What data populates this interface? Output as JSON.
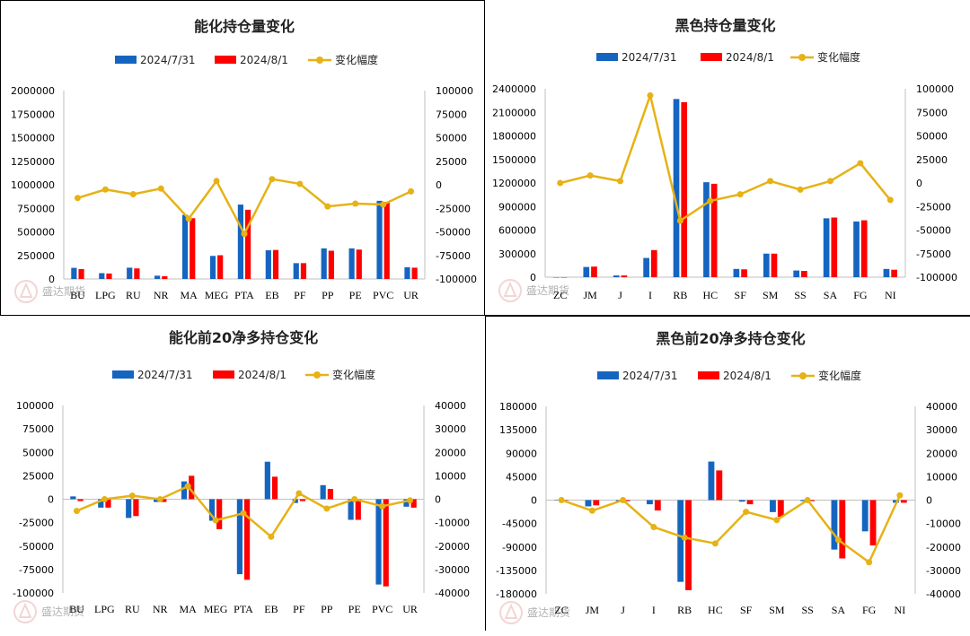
{
  "colors": {
    "blue": "#1565C0",
    "red": "#FF0000",
    "gold": "#E6B215"
  },
  "watermark": {
    "name": "盛达期货"
  },
  "chart_data": [
    {
      "type": "bar+line",
      "title": "能化持仓量变化",
      "categories": [
        "BU",
        "LPG",
        "RU",
        "NR",
        "MA",
        "MEG",
        "PTA",
        "EB",
        "PF",
        "PP",
        "PE",
        "PVC",
        "UR"
      ],
      "series": [
        {
          "name": "2024/7/31",
          "kind": "bar",
          "axis": "left",
          "values": [
            118000,
            62000,
            120000,
            35000,
            680000,
            245000,
            790000,
            305000,
            168000,
            325000,
            325000,
            830000,
            125000
          ]
        },
        {
          "name": "2024/8/1",
          "kind": "bar",
          "axis": "left",
          "values": [
            105000,
            58000,
            112000,
            30000,
            645000,
            252000,
            735000,
            308000,
            168000,
            300000,
            312000,
            818000,
            120000
          ]
        },
        {
          "name": "变化幅度",
          "kind": "line",
          "axis": "right",
          "values": [
            -14000,
            -5000,
            -10000,
            -4000,
            -36000,
            4000,
            -52000,
            6000,
            1000,
            -23000,
            -20000,
            -21000,
            -7000
          ]
        }
      ],
      "left_axis": {
        "min": 0,
        "max": 2000000,
        "ticks": [
          0,
          250000,
          500000,
          750000,
          1000000,
          1250000,
          1500000,
          1750000,
          2000000
        ],
        "labels": [
          "0",
          "250000",
          "500000",
          "750000",
          "1000000",
          "1250000",
          "1500000",
          "1750000",
          "2000000"
        ]
      },
      "right_axis": {
        "min": -100000,
        "max": 100000,
        "ticks": [
          -100000,
          -75000,
          -50000,
          -25000,
          0,
          25000,
          50000,
          75000,
          100000
        ],
        "labels": [
          "-100000",
          "-75000",
          "-50000",
          "-25000",
          "0",
          "25000",
          "50000",
          "75000",
          "100000"
        ]
      },
      "legend": "top"
    },
    {
      "type": "bar+line",
      "title": "黑色持仓量变化",
      "categories": [
        "ZC",
        "JM",
        "J",
        "I",
        "RB",
        "HC",
        "SF",
        "SM",
        "SS",
        "SA",
        "FG",
        "NI"
      ],
      "series": [
        {
          "name": "2024/7/31",
          "kind": "bar",
          "axis": "left",
          "values": [
            0,
            130000,
            22000,
            245000,
            2270000,
            1210000,
            105000,
            300000,
            85000,
            750000,
            710000,
            105000
          ]
        },
        {
          "name": "2024/8/1",
          "kind": "bar",
          "axis": "left",
          "values": [
            0,
            135000,
            22000,
            345000,
            2230000,
            1190000,
            100000,
            300000,
            80000,
            760000,
            725000,
            95000
          ]
        },
        {
          "name": "变化幅度",
          "kind": "line",
          "axis": "right",
          "values": [
            0,
            8000,
            2000,
            93000,
            -40000,
            -19000,
            -12000,
            2000,
            -7000,
            2000,
            21000,
            -18000
          ]
        }
      ],
      "left_axis": {
        "min": 0,
        "max": 2400000,
        "ticks": [
          0,
          300000,
          600000,
          900000,
          1200000,
          1500000,
          1800000,
          2100000,
          2400000
        ],
        "labels": [
          "0",
          "300000",
          "600000",
          "900000",
          "1200000",
          "1500000",
          "1800000",
          "2100000",
          "2400000"
        ]
      },
      "right_axis": {
        "min": -100000,
        "max": 100000,
        "ticks": [
          -100000,
          -75000,
          -50000,
          -25000,
          0,
          25000,
          50000,
          75000,
          100000
        ],
        "labels": [
          "-100000",
          "-75000",
          "-50000",
          "-25000",
          "0",
          "25000",
          "50000",
          "75000",
          "100000"
        ]
      },
      "legend": "top"
    },
    {
      "type": "bar+line",
      "title": "能化前20净多持仓变化",
      "categories": [
        "BU",
        "LPG",
        "RU",
        "NR",
        "MA",
        "MEG",
        "PTA",
        "EB",
        "PF",
        "PP",
        "PE",
        "PVC",
        "UR"
      ],
      "series": [
        {
          "name": "2024/7/31",
          "kind": "bar",
          "axis": "left",
          "values": [
            3000,
            -9000,
            -20000,
            -3000,
            19000,
            -23000,
            -80000,
            40000,
            -4000,
            15000,
            -22000,
            -91000,
            -8000
          ]
        },
        {
          "name": "2024/8/1",
          "kind": "bar",
          "axis": "left",
          "values": [
            -2000,
            -9000,
            -18000,
            -3000,
            25000,
            -32000,
            -86000,
            24000,
            -2000,
            11000,
            -22000,
            -93000,
            -9000
          ]
        },
        {
          "name": "变化幅度",
          "kind": "line",
          "axis": "right",
          "values": [
            -5000,
            0,
            1500,
            0,
            5500,
            -9000,
            -6000,
            -16000,
            2500,
            -4000,
            0,
            -3000,
            -500
          ]
        }
      ],
      "left_axis": {
        "min": -100000,
        "max": 100000,
        "ticks": [
          -100000,
          -75000,
          -50000,
          -25000,
          0,
          25000,
          50000,
          75000,
          100000
        ],
        "labels": [
          "-100000",
          "-75000",
          "-50000",
          "-25000",
          "0",
          "25000",
          "50000",
          "75000",
          "100000"
        ]
      },
      "right_axis": {
        "min": -40000,
        "max": 40000,
        "ticks": [
          -40000,
          -30000,
          -20000,
          -10000,
          0,
          10000,
          20000,
          30000,
          40000
        ],
        "labels": [
          "-40000",
          "-30000",
          "-20000",
          "-10000",
          "0",
          "10000",
          "20000",
          "30000",
          "40000"
        ]
      },
      "legend": "top"
    },
    {
      "type": "bar+line",
      "title": "黑色前20净多持仓变化",
      "categories": [
        "ZC",
        "JM",
        "J",
        "I",
        "RB",
        "HC",
        "SF",
        "SM",
        "SS",
        "SA",
        "FG",
        "NI"
      ],
      "series": [
        {
          "name": "2024/7/31",
          "kind": "bar",
          "axis": "left",
          "values": [
            0,
            -12000,
            -2000,
            -8000,
            -157000,
            74000,
            -3000,
            -23000,
            -2000,
            -95000,
            -60000,
            -5000
          ]
        },
        {
          "name": "2024/8/1",
          "kind": "bar",
          "axis": "left",
          "values": [
            0,
            -10000,
            -2000,
            -20000,
            -173000,
            57000,
            -8000,
            -32000,
            -2000,
            -112000,
            -87000,
            -5000
          ]
        },
        {
          "name": "变化幅度",
          "kind": "line",
          "axis": "right",
          "values": [
            0,
            -4500,
            0,
            -11500,
            -16000,
            -18500,
            -5000,
            -8500,
            0,
            -17000,
            -26500,
            2000
          ]
        }
      ],
      "left_axis": {
        "min": -180000,
        "max": 180000,
        "ticks": [
          -180000,
          -135000,
          -90000,
          -45000,
          0,
          45000,
          90000,
          135000,
          180000
        ],
        "labels": [
          "-180000",
          "-135000",
          "-90000",
          "-45000",
          "0",
          "45000",
          "90000",
          "135000",
          "180000"
        ]
      },
      "right_axis": {
        "min": -40000,
        "max": 40000,
        "ticks": [
          -40000,
          -30000,
          -20000,
          -10000,
          0,
          10000,
          20000,
          30000,
          40000
        ],
        "labels": [
          "-40000",
          "-30000",
          "-20000",
          "-10000",
          "0",
          "10000",
          "20000",
          "30000",
          "40000"
        ]
      },
      "legend": "top"
    }
  ]
}
